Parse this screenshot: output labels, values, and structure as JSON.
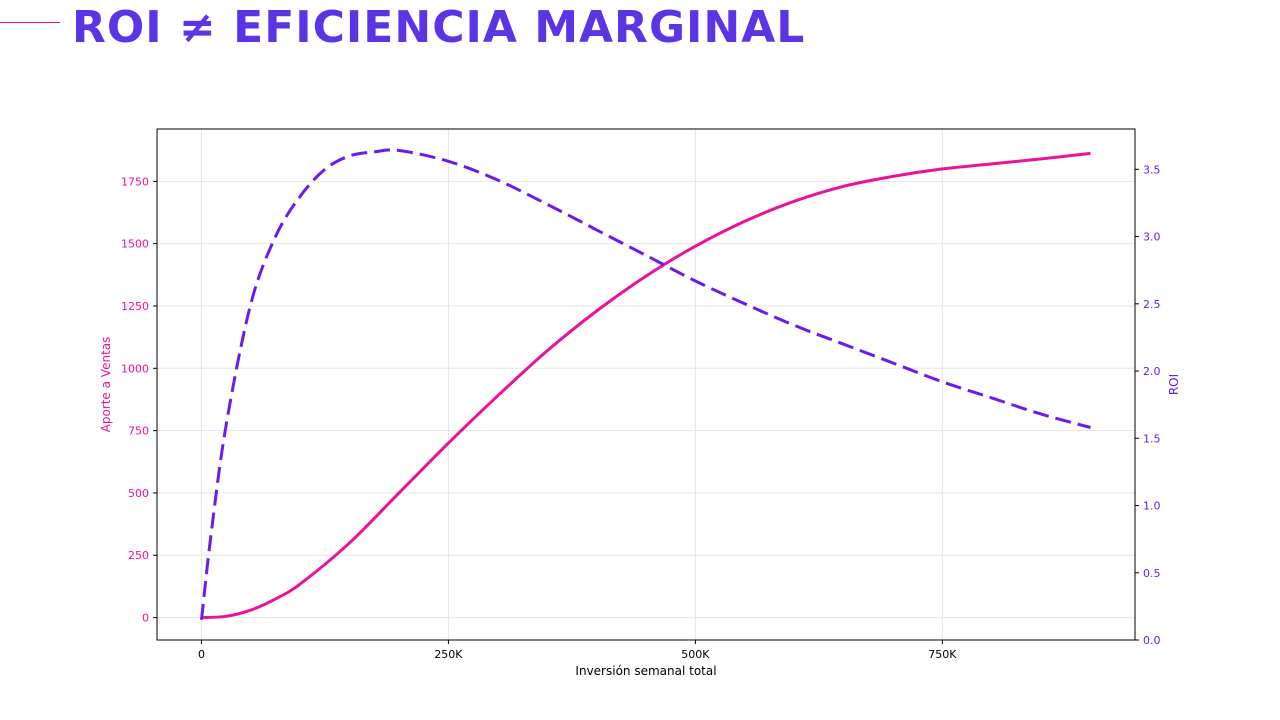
{
  "slide": {
    "title": "ROI ≠ EFICIENCIA MARGINAL"
  },
  "colors": {
    "accent": "#5b34e6",
    "sales": "#e8129b",
    "roi": "#6a1cf0",
    "grid": "#e6e6e6"
  },
  "chart_data": {
    "type": "line",
    "title": "",
    "xlabel": "Inversión semanal total",
    "ylabel_left": "Aporte a Ventas",
    "ylabel_right": "ROI",
    "xlim": [
      -45000,
      945000
    ],
    "ylim_left": [
      -90,
      1960
    ],
    "ylim_right": [
      0.0,
      3.8
    ],
    "x_ticks": [
      0,
      250000,
      500000,
      750000
    ],
    "x_tick_labels": [
      "0",
      "250K",
      "500K",
      "750K"
    ],
    "y_left_ticks": [
      0,
      250,
      500,
      750,
      1000,
      1250,
      1500,
      1750
    ],
    "y_left_tick_labels": [
      "0",
      "250",
      "500",
      "750",
      "1000",
      "1250",
      "1500",
      "1750"
    ],
    "y_right_ticks": [
      0.0,
      0.5,
      1.0,
      1.5,
      2.0,
      2.5,
      3.0,
      3.5
    ],
    "y_right_tick_labels": [
      "0.0",
      "0.5",
      "1.0",
      "1.5",
      "2.0",
      "2.5",
      "3.0",
      "3.5"
    ],
    "grid": true,
    "series": [
      {
        "name": "Aporte a Ventas",
        "axis": "left",
        "style": "solid",
        "x": [
          0,
          25000,
          50000,
          75000,
          100000,
          150000,
          200000,
          250000,
          300000,
          350000,
          400000,
          450000,
          500000,
          550000,
          600000,
          650000,
          700000,
          750000,
          800000,
          850000,
          900000
        ],
        "values": [
          0,
          5,
          30,
          75,
          135,
          300,
          500,
          700,
          890,
          1070,
          1230,
          1370,
          1490,
          1590,
          1670,
          1730,
          1770,
          1800,
          1820,
          1840,
          1862
        ]
      },
      {
        "name": "ROI",
        "axis": "right",
        "style": "dashed",
        "x": [
          0,
          10000,
          25000,
          50000,
          75000,
          100000,
          125000,
          150000,
          175000,
          200000,
          250000,
          300000,
          350000,
          400000,
          450000,
          500000,
          550000,
          600000,
          650000,
          700000,
          750000,
          800000,
          850000,
          900000
        ],
        "values": [
          0.15,
          0.8,
          1.6,
          2.5,
          3.0,
          3.3,
          3.5,
          3.6,
          3.63,
          3.64,
          3.56,
          3.42,
          3.24,
          3.05,
          2.86,
          2.67,
          2.5,
          2.34,
          2.2,
          2.06,
          1.92,
          1.8,
          1.68,
          1.58
        ]
      }
    ]
  }
}
